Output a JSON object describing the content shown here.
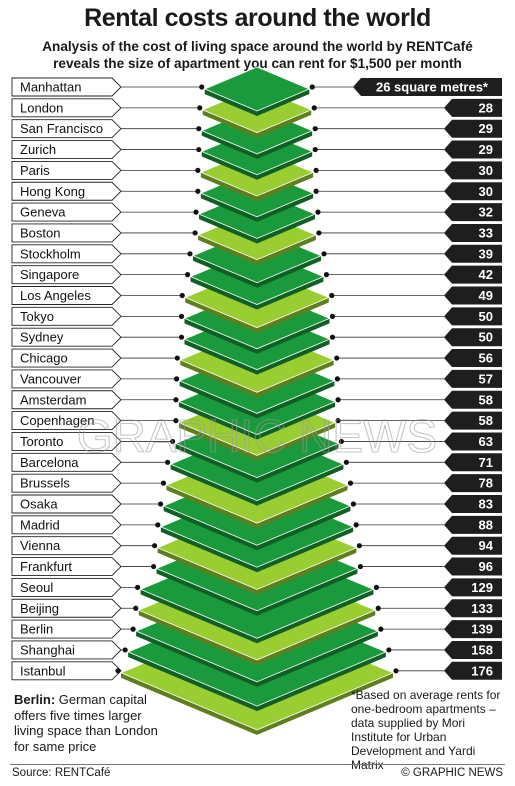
{
  "header": {
    "title": "Rental costs around the world",
    "subtitle_line1": "Analysis of the cost of living space around the world by RENTCafé",
    "subtitle_line2": "reveals the size of apartment you can rent for $1,500 per month"
  },
  "chart_data": {
    "type": "bar",
    "title": "Rental costs around the world",
    "unit_label": "26 square metres*",
    "categories": [
      "Manhattan",
      "London",
      "San Francisco",
      "Zurich",
      "Paris",
      "Hong Kong",
      "Geneva",
      "Boston",
      "Stockholm",
      "Singapore",
      "Los Angeles",
      "Tokyo",
      "Sydney",
      "Chicago",
      "Vancouver",
      "Amsterdam",
      "Copenhagen",
      "Toronto",
      "Barcelona",
      "Brussels",
      "Osaka",
      "Madrid",
      "Vienna",
      "Frankfurt",
      "Seoul",
      "Beijing",
      "Berlin",
      "Shanghai",
      "Istanbul"
    ],
    "values": [
      26,
      28,
      29,
      29,
      30,
      30,
      32,
      33,
      39,
      42,
      49,
      50,
      50,
      56,
      57,
      58,
      58,
      63,
      71,
      78,
      83,
      88,
      94,
      96,
      129,
      133,
      139,
      158,
      176
    ],
    "value_labels": [
      "26 square metres*",
      "28",
      "29",
      "29",
      "30",
      "30",
      "32",
      "33",
      "39",
      "42",
      "49",
      "50",
      "50",
      "56",
      "57",
      "58",
      "58",
      "63",
      "71",
      "78",
      "83",
      "88",
      "94",
      "96",
      "129",
      "133",
      "139",
      "158",
      "176"
    ],
    "xlabel": "",
    "ylabel": "",
    "colors": [
      "#1a9a3c",
      "#9acd32"
    ]
  },
  "note": {
    "bold": "Berlin:",
    "text": " German capital offers five times larger living space than London for same price"
  },
  "footnote": "*Based on average rents for one-bedroom apartments – data supplied by Mori Institute for Urban Development and Yardi Matrix",
  "footer": {
    "source": "Source: RENTCafé",
    "credit": "© GRAPHIC NEWS"
  },
  "watermark": {
    "text": "GRAPHIC NEWS"
  }
}
